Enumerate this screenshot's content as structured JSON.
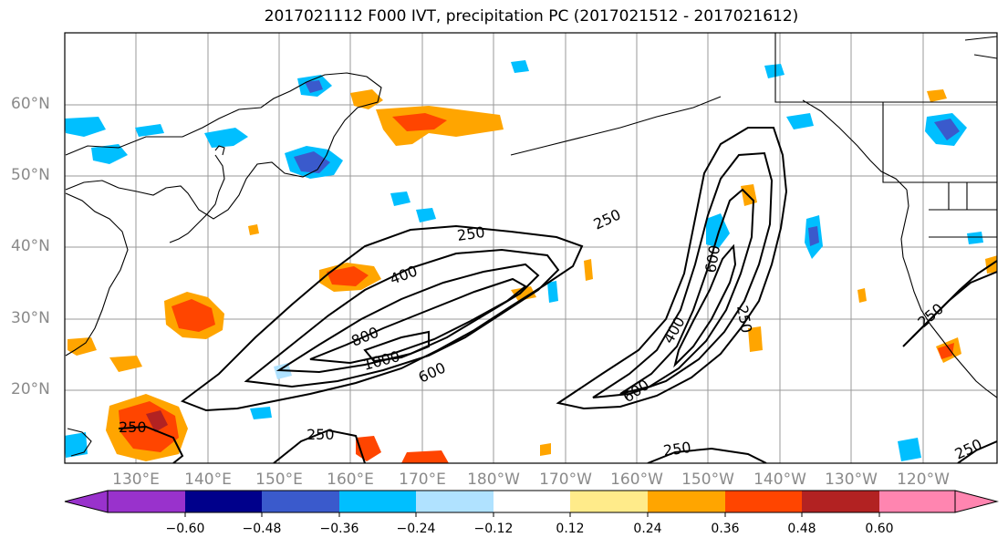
{
  "title": "2017021112 F000 IVT, precipitation PC (2017021512 - 2017021612)",
  "map": {
    "region": "North Pacific",
    "lat_labels": [
      "60°N",
      "50°N",
      "40°N",
      "30°N",
      "20°N"
    ],
    "lon_labels": [
      "130°E",
      "140°E",
      "150°E",
      "160°E",
      "170°E",
      "180°W",
      "170°W",
      "160°W",
      "150°W",
      "140°W",
      "130°W",
      "120°W"
    ],
    "grid": true,
    "ivt_contour_labels": [
      "250",
      "400",
      "800",
      "1000",
      "600",
      "250",
      "600",
      "400",
      "600",
      "250",
      "250",
      "250",
      "250",
      "250"
    ],
    "contour_color": "#000000"
  },
  "colorbar": {
    "ticks": [
      "−0.60",
      "−0.48",
      "−0.36",
      "−0.24",
      "−0.12",
      "0.12",
      "0.24",
      "0.36",
      "0.48",
      "0.60"
    ],
    "colors": [
      "#9932cc",
      "#00008b",
      "#3a5acc",
      "#00bfff",
      "#b0e2ff",
      "#ffffff",
      "#ffeb8a",
      "#ffa500",
      "#ff4500",
      "#b22222",
      "#ff85b0"
    ],
    "extend": "both"
  }
}
